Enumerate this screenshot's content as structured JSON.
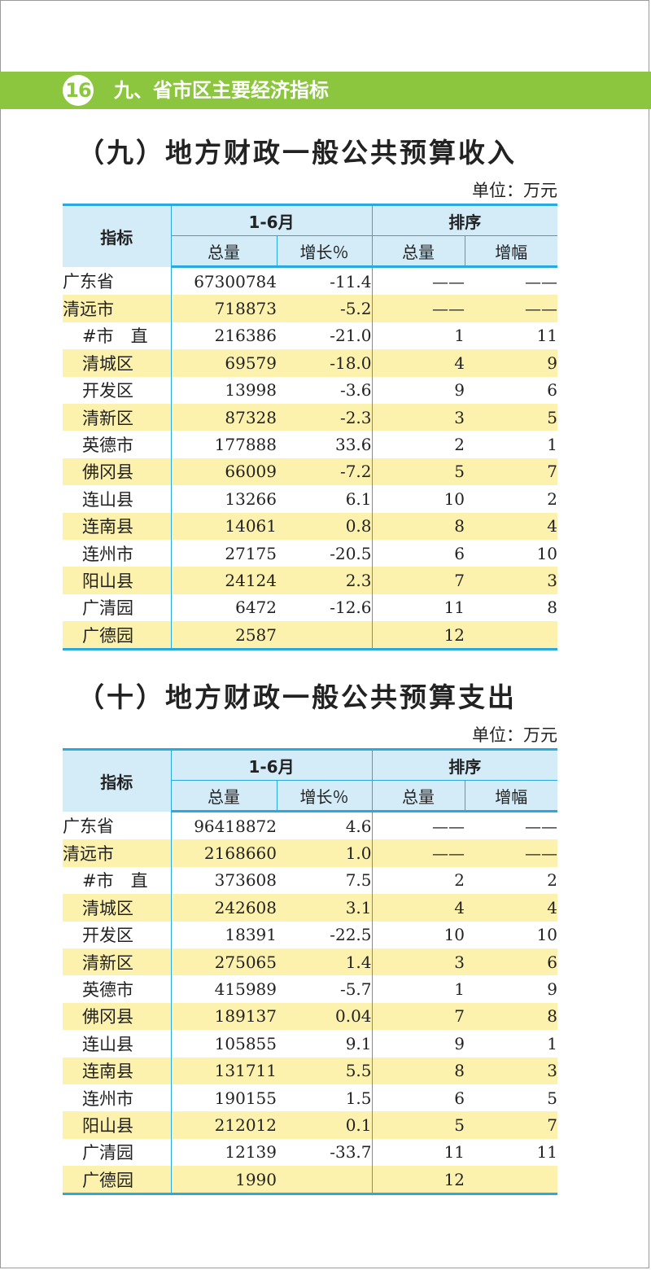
{
  "header": {
    "page_number": "16",
    "section_title": "九、省市区主要经济指标"
  },
  "colors": {
    "banner": "#8cc63e",
    "table_header": "#d4ebf8",
    "table_rule": "#29a9e1",
    "row_highlight": "#fdf2ad"
  },
  "table_income": {
    "title": "（九）地方财政一般公共预算收入",
    "unit": "单位：万元",
    "header": {
      "indicator": "指标",
      "period": "1-6月",
      "ranking": "排序",
      "total": "总量",
      "growth": "增长％",
      "rank_total": "总量",
      "rank_growth": "增幅"
    },
    "rows": [
      {
        "name": "广东省",
        "total": "67300784",
        "growth": "-11.4",
        "rank_total": "——",
        "rank_growth": "——"
      },
      {
        "name": "清远市",
        "total": "718873",
        "growth": "-5.2",
        "rank_total": "——",
        "rank_growth": "——"
      },
      {
        "name": "#市　直",
        "total": "216386",
        "growth": "-21.0",
        "rank_total": "1",
        "rank_growth": "11"
      },
      {
        "name": "清城区",
        "total": "69579",
        "growth": "-18.0",
        "rank_total": "4",
        "rank_growth": "9"
      },
      {
        "name": "开发区",
        "total": "13998",
        "growth": "-3.6",
        "rank_total": "9",
        "rank_growth": "6"
      },
      {
        "name": "清新区",
        "total": "87328",
        "growth": "-2.3",
        "rank_total": "3",
        "rank_growth": "5"
      },
      {
        "name": "英德市",
        "total": "177888",
        "growth": "33.6",
        "rank_total": "2",
        "rank_growth": "1"
      },
      {
        "name": "佛冈县",
        "total": "66009",
        "growth": "-7.2",
        "rank_total": "5",
        "rank_growth": "7"
      },
      {
        "name": "连山县",
        "total": "13266",
        "growth": "6.1",
        "rank_total": "10",
        "rank_growth": "2"
      },
      {
        "name": "连南县",
        "total": "14061",
        "growth": "0.8",
        "rank_total": "8",
        "rank_growth": "4"
      },
      {
        "name": "连州市",
        "total": "27175",
        "growth": "-20.5",
        "rank_total": "6",
        "rank_growth": "10"
      },
      {
        "name": "阳山县",
        "total": "24124",
        "growth": "2.3",
        "rank_total": "7",
        "rank_growth": "3"
      },
      {
        "name": "广清园",
        "total": "6472",
        "growth": "-12.6",
        "rank_total": "11",
        "rank_growth": "8"
      },
      {
        "name": "广德园",
        "total": "2587",
        "growth": "",
        "rank_total": "12",
        "rank_growth": ""
      }
    ]
  },
  "table_expense": {
    "title": "（十）地方财政一般公共预算支出",
    "unit": "单位：万元",
    "header": {
      "indicator": "指标",
      "period": "1-6月",
      "ranking": "排序",
      "total": "总量",
      "growth": "增长％",
      "rank_total": "总量",
      "rank_growth": "增幅"
    },
    "rows": [
      {
        "name": "广东省",
        "total": "96418872",
        "growth": "4.6",
        "rank_total": "——",
        "rank_growth": "——"
      },
      {
        "name": "清远市",
        "total": "2168660",
        "growth": "1.0",
        "rank_total": "——",
        "rank_growth": "——"
      },
      {
        "name": "#市　直",
        "total": "373608",
        "growth": "7.5",
        "rank_total": "2",
        "rank_growth": "2"
      },
      {
        "name": "清城区",
        "total": "242608",
        "growth": "3.1",
        "rank_total": "4",
        "rank_growth": "4"
      },
      {
        "name": "开发区",
        "total": "18391",
        "growth": "-22.5",
        "rank_total": "10",
        "rank_growth": "10"
      },
      {
        "name": "清新区",
        "total": "275065",
        "growth": "1.4",
        "rank_total": "3",
        "rank_growth": "6"
      },
      {
        "name": "英德市",
        "total": "415989",
        "growth": "-5.7",
        "rank_total": "1",
        "rank_growth": "9"
      },
      {
        "name": "佛冈县",
        "total": "189137",
        "growth": "0.04",
        "rank_total": "7",
        "rank_growth": "8"
      },
      {
        "name": "连山县",
        "total": "105855",
        "growth": "9.1",
        "rank_total": "9",
        "rank_growth": "1"
      },
      {
        "name": "连南县",
        "total": "131711",
        "growth": "5.5",
        "rank_total": "8",
        "rank_growth": "3"
      },
      {
        "name": "连州市",
        "total": "190155",
        "growth": "1.5",
        "rank_total": "6",
        "rank_growth": "5"
      },
      {
        "name": "阳山县",
        "total": "212012",
        "growth": "0.1",
        "rank_total": "5",
        "rank_growth": "7"
      },
      {
        "name": "广清园",
        "total": "12139",
        "growth": "-33.7",
        "rank_total": "11",
        "rank_growth": "11"
      },
      {
        "name": "广德园",
        "total": "1990",
        "growth": "",
        "rank_total": "12",
        "rank_growth": ""
      }
    ]
  }
}
